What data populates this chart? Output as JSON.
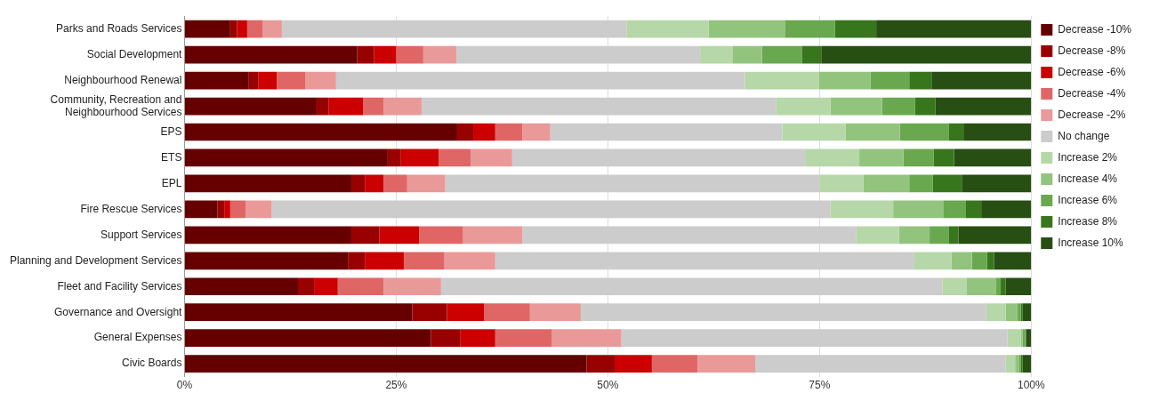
{
  "chart_data": {
    "type": "bar",
    "orientation": "horizontal",
    "stacked": true,
    "categories": [
      "Parks and Roads Services",
      "Social Development",
      "Neighbourhood Renewal",
      "Community, Recreation and Neighbourhood Services",
      "EPS",
      "ETS",
      "EPL",
      "Fire Rescue Services",
      "Support Services",
      "Planning and Development Services",
      "Fleet and Facility Services",
      "Governance and Oversight",
      "General Expenses",
      "Civic Boards"
    ],
    "series": [
      {
        "name": "Decrease -10%",
        "color": "#660000",
        "values": [
          5.4,
          20.4,
          7.6,
          15.6,
          32.2,
          24.0,
          19.7,
          3.9,
          19.7,
          19.3,
          13.4,
          26.9,
          29.1,
          47.5
        ]
      },
      {
        "name": "Decrease -8%",
        "color": "#990000",
        "values": [
          0.8,
          2.0,
          1.1,
          1.4,
          1.9,
          1.5,
          1.6,
          0.8,
          3.3,
          2.0,
          1.9,
          4.1,
          3.5,
          3.3
        ]
      },
      {
        "name": "Decrease -6%",
        "color": "#cc0000",
        "values": [
          1.2,
          2.6,
          2.2,
          4.1,
          2.6,
          4.5,
          2.2,
          0.7,
          4.7,
          4.6,
          2.8,
          4.4,
          4.1,
          4.4
        ]
      },
      {
        "name": "Decrease -4%",
        "color": "#e06666",
        "values": [
          1.8,
          3.2,
          3.4,
          2.4,
          3.2,
          3.8,
          2.8,
          1.8,
          5.2,
          4.8,
          5.4,
          5.4,
          6.7,
          5.4
        ]
      },
      {
        "name": "Decrease -2%",
        "color": "#ea9999",
        "values": [
          2.3,
          3.9,
          3.6,
          4.5,
          3.3,
          4.9,
          4.5,
          3.1,
          7.0,
          6.0,
          6.8,
          6.0,
          8.2,
          6.8
        ]
      },
      {
        "name": "No change",
        "color": "#cccccc",
        "values": [
          40.7,
          28.8,
          48.3,
          41.9,
          27.4,
          34.6,
          44.2,
          66.0,
          39.4,
          49.5,
          59.2,
          47.9,
          45.6,
          29.6
        ]
      },
      {
        "name": "Increase 2%",
        "color": "#b6d7a8",
        "values": [
          9.7,
          3.8,
          8.7,
          6.4,
          7.5,
          6.4,
          5.2,
          7.4,
          5.1,
          4.4,
          2.9,
          2.3,
          1.6,
          1.1
        ]
      },
      {
        "name": "Increase 4%",
        "color": "#93c47d",
        "values": [
          9.0,
          3.5,
          6.1,
          6.1,
          6.4,
          5.2,
          5.4,
          5.9,
          3.6,
          2.4,
          3.4,
          1.4,
          0.2,
          0.5
        ]
      },
      {
        "name": "Increase 6%",
        "color": "#6aa84f",
        "values": [
          5.9,
          4.7,
          4.6,
          3.9,
          5.8,
          3.6,
          2.8,
          2.7,
          2.3,
          1.8,
          0.6,
          0.4,
          0.3,
          0.2
        ]
      },
      {
        "name": "Increase 8%",
        "color": "#38761d",
        "values": [
          4.9,
          2.3,
          2.7,
          2.4,
          1.7,
          2.4,
          3.4,
          1.8,
          1.1,
          0.8,
          0.6,
          0.2,
          0.1,
          0.2
        ]
      },
      {
        "name": "Increase 10%",
        "color": "#274e13",
        "values": [
          18.3,
          24.8,
          11.7,
          11.3,
          8.0,
          9.1,
          8.2,
          5.9,
          8.6,
          4.4,
          3.0,
          1.0,
          0.6,
          1.0
        ]
      }
    ],
    "xlim": [
      0,
      100
    ],
    "xticks": [
      {
        "value": 0,
        "label": "0%"
      },
      {
        "value": 25,
        "label": "25%"
      },
      {
        "value": 50,
        "label": "50%"
      },
      {
        "value": 75,
        "label": "75%"
      },
      {
        "value": 100,
        "label": "100%"
      }
    ],
    "grid": "x",
    "legend": "right"
  }
}
